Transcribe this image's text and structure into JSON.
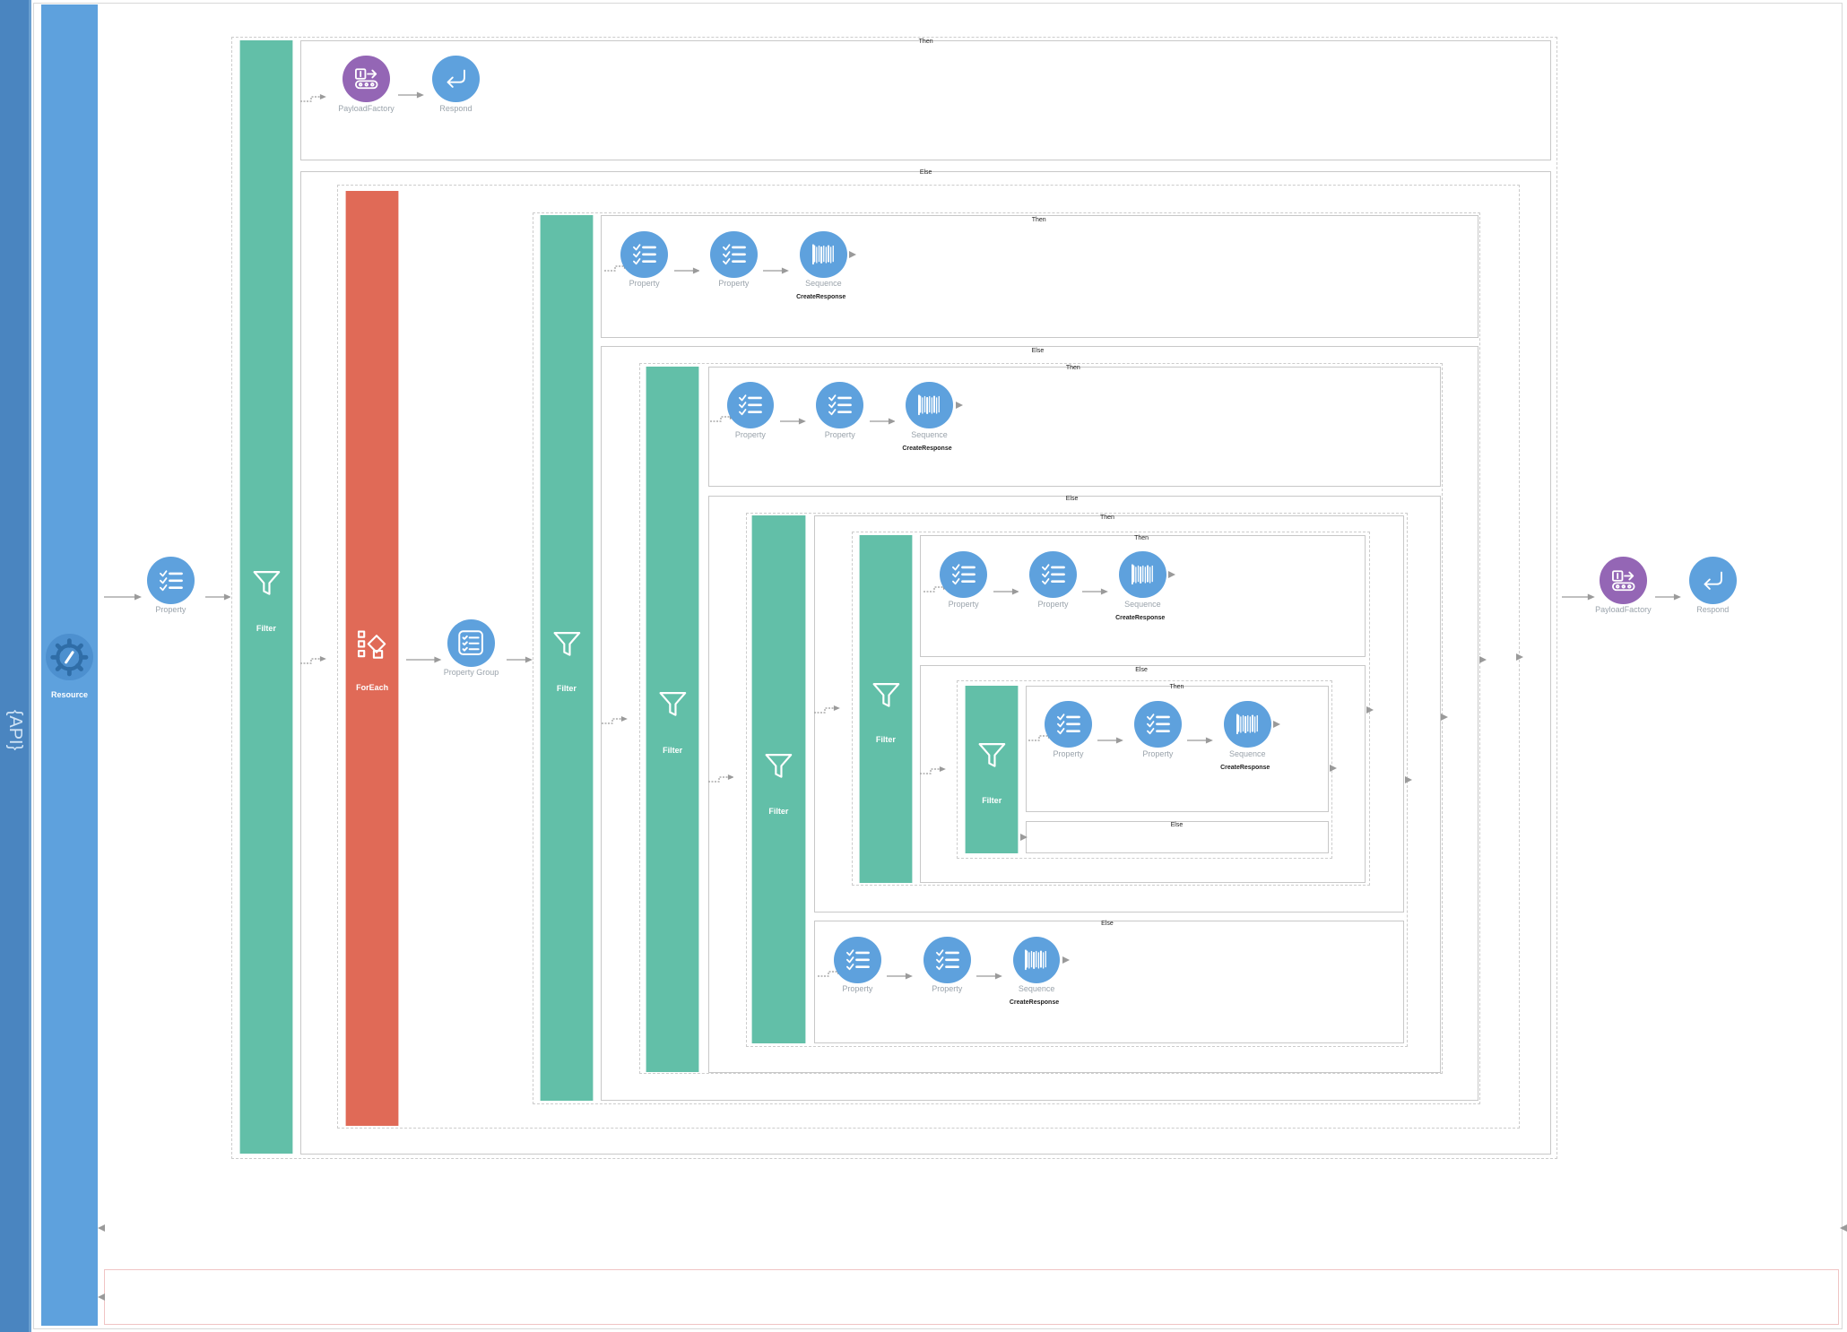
{
  "colors": {
    "filter": "#62bfa8",
    "foreach": "#e06a57",
    "resource": "#5ea1dd",
    "sidebar": "#4a85c0",
    "node": "#5ea1dd",
    "payload": "#9466b5",
    "arrow": "#9a9a9a",
    "frame": "#cccccc",
    "errorFrame": "#f0c4c4"
  },
  "app": {
    "api_label": "{API}",
    "resource_label": "Resource"
  },
  "labels": {
    "then": "Then",
    "else": "Else",
    "filter": "Filter",
    "foreach": "ForEach",
    "property": "Property",
    "property_group": "Property Group",
    "sequence": "Sequence",
    "create_response": "CreateResponse",
    "payload_factory": "PayloadFactory",
    "respond": "Respond"
  },
  "icons": {
    "resource": "gear-slash-icon",
    "filter": "funnel-icon",
    "foreach": "foreach-shapes-icon",
    "property": "checklist-icon",
    "property_group": "list-card-icon",
    "sequence": "barcode-icon",
    "payload_factory": "conveyor-icon",
    "respond": "return-arrow-icon"
  }
}
